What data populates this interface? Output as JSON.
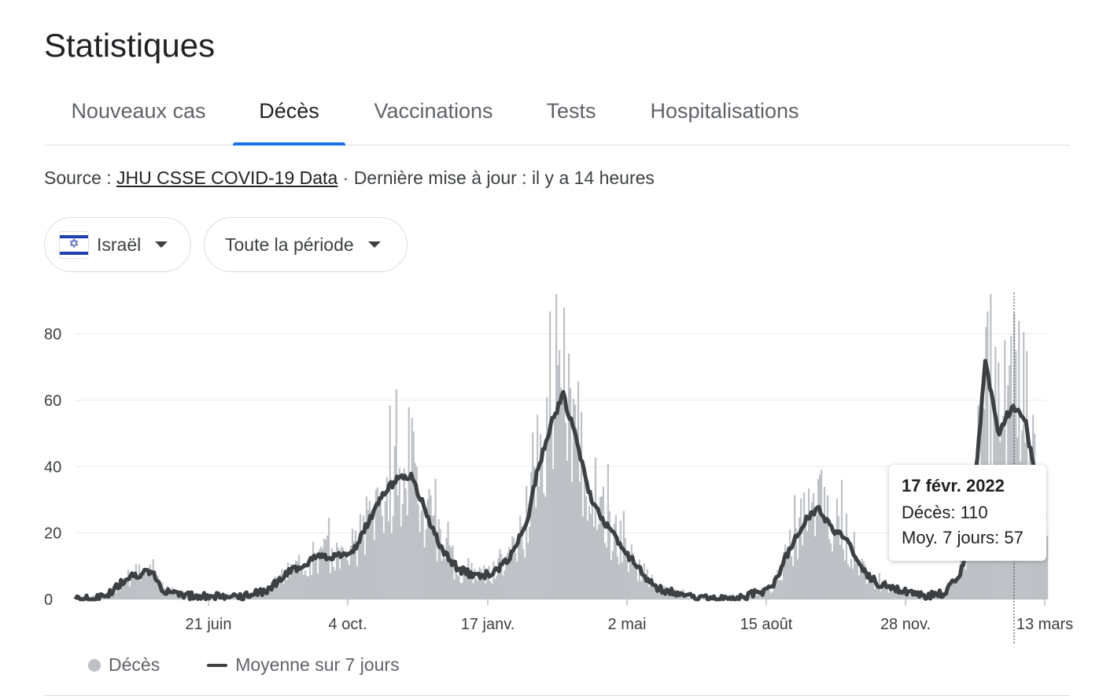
{
  "page": {
    "title": "Statistiques"
  },
  "tabs": [
    {
      "label": "Nouveaux cas"
    },
    {
      "label": "Décès",
      "active": true
    },
    {
      "label": "Vaccinations"
    },
    {
      "label": "Tests"
    },
    {
      "label": "Hospitalisations"
    }
  ],
  "source": {
    "prefix": "Source : ",
    "link_text": "JHU CSSE COVID-19 Data",
    "suffix": " · Dernière mise à jour : il y a 14 heures"
  },
  "filters": {
    "country": {
      "label": "Israël",
      "icon": "israel-flag-icon"
    },
    "period": {
      "label": "Toute la période"
    }
  },
  "tooltip": {
    "date": "17 févr. 2022",
    "deaths": "Décès: 110",
    "avg": "Moy. 7 jours: 57"
  },
  "legend": {
    "deaths": "Décès",
    "avg": "Moyenne sur 7 jours"
  },
  "colors": {
    "accent": "#1a73e8",
    "bars": "#bdc1c6",
    "avg_line": "#3c4043",
    "grid": "#e8eaed"
  },
  "chart_data": {
    "type": "bar",
    "ylim": [
      0,
      90
    ],
    "y_ticks": [
      "0",
      "20",
      "40",
      "60",
      "80"
    ],
    "x_ticks": [
      "21 juin",
      "4 oct.",
      "17 janv.",
      "2 mai",
      "15 août",
      "28 nov.",
      "13 mars"
    ],
    "grid": true,
    "legend_position": "bottom-left",
    "series": [
      {
        "name": "Décès",
        "kind": "bar"
      },
      {
        "name": "Moyenne sur 7 jours",
        "kind": "line"
      }
    ],
    "avg_keypoints": [
      [
        0.0,
        0
      ],
      [
        0.02,
        0
      ],
      [
        0.04,
        2
      ],
      [
        0.06,
        7
      ],
      [
        0.08,
        8
      ],
      [
        0.09,
        7
      ],
      [
        0.1,
        3
      ],
      [
        0.12,
        2
      ],
      [
        0.13,
        1
      ],
      [
        0.16,
        1
      ],
      [
        0.18,
        1
      ],
      [
        0.2,
        1
      ],
      [
        0.22,
        3
      ],
      [
        0.25,
        9
      ],
      [
        0.28,
        13
      ],
      [
        0.3,
        13
      ],
      [
        0.32,
        15
      ],
      [
        0.33,
        20
      ],
      [
        0.35,
        30
      ],
      [
        0.37,
        37
      ],
      [
        0.385,
        37
      ],
      [
        0.4,
        28
      ],
      [
        0.42,
        15
      ],
      [
        0.44,
        9
      ],
      [
        0.46,
        7
      ],
      [
        0.48,
        8
      ],
      [
        0.5,
        13
      ],
      [
        0.52,
        25
      ],
      [
        0.53,
        38
      ],
      [
        0.545,
        52
      ],
      [
        0.56,
        62
      ],
      [
        0.575,
        48
      ],
      [
        0.59,
        32
      ],
      [
        0.61,
        22
      ],
      [
        0.63,
        15
      ],
      [
        0.65,
        8
      ],
      [
        0.67,
        3
      ],
      [
        0.69,
        2
      ],
      [
        0.71,
        1
      ],
      [
        0.74,
        0
      ],
      [
        0.76,
        0
      ],
      [
        0.78,
        2
      ],
      [
        0.8,
        3
      ],
      [
        0.82,
        15
      ],
      [
        0.84,
        25
      ],
      [
        0.855,
        27
      ],
      [
        0.87,
        21
      ],
      [
        0.885,
        19
      ],
      [
        0.9,
        10
      ],
      [
        0.92,
        5
      ],
      [
        0.94,
        3
      ],
      [
        0.96,
        2
      ],
      [
        0.98,
        1
      ],
      [
        1.0,
        2
      ],
      [
        1.02,
        10
      ],
      [
        1.035,
        40
      ],
      [
        1.045,
        72
      ],
      [
        1.06,
        50
      ],
      [
        1.075,
        58
      ],
      [
        1.09,
        55
      ],
      [
        1.1,
        40
      ],
      [
        1.11,
        25
      ]
    ]
  }
}
